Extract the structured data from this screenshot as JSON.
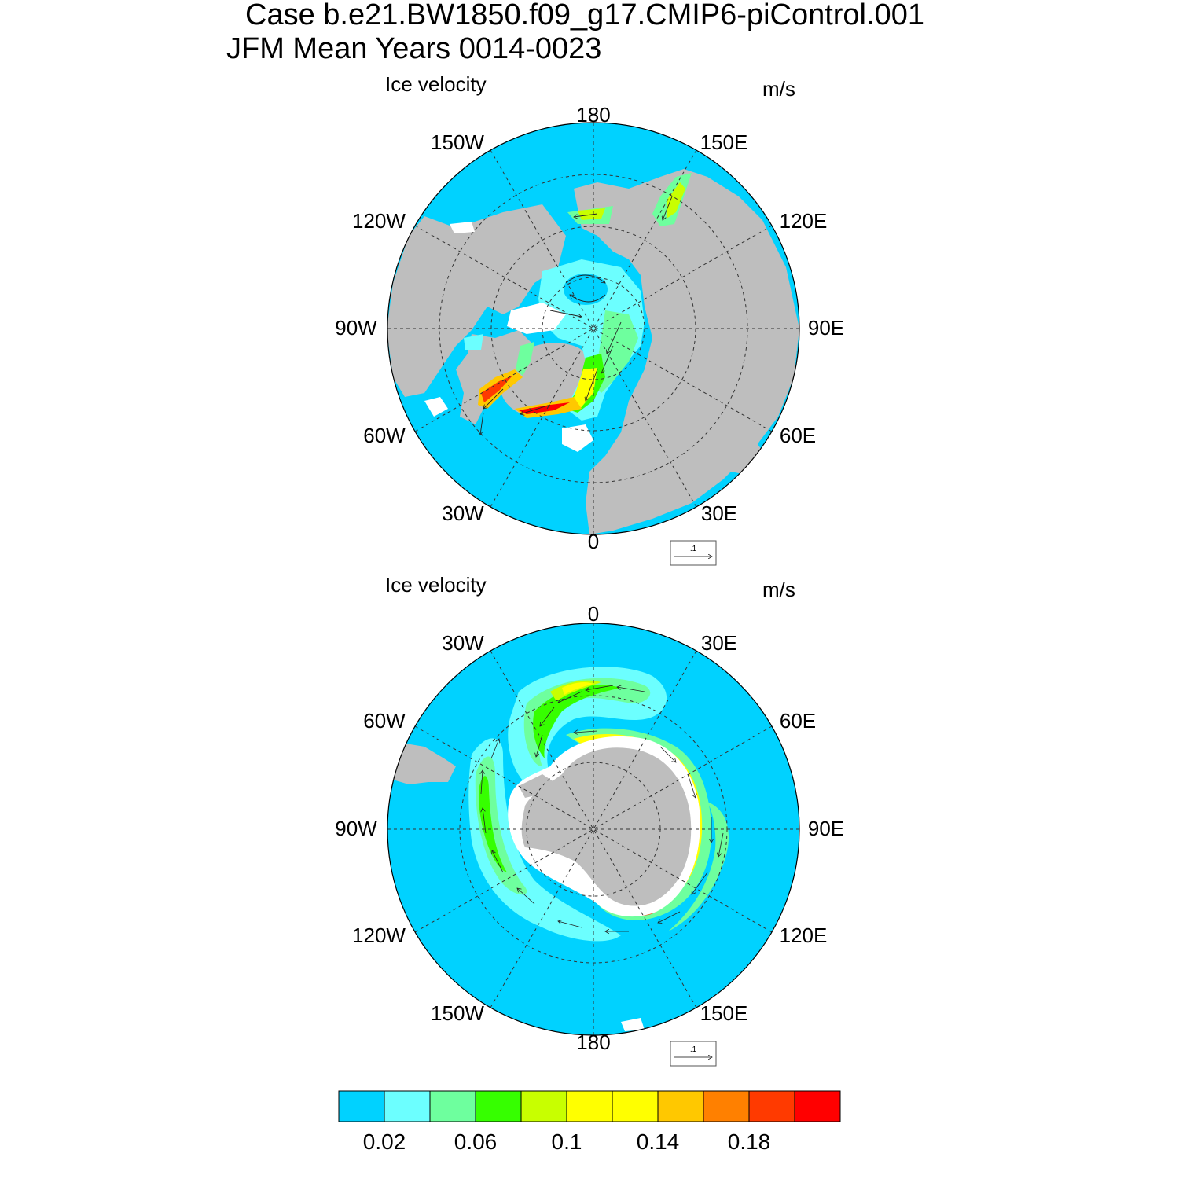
{
  "title": {
    "line1": "Case b.e21.BW1850.f09_g17.CMIP6-piControl.001",
    "line2": "JFM Mean   Years 0014-0023"
  },
  "north_panel": {
    "field_label": "Ice velocity",
    "units": "m/s",
    "ref_vector_label": ".1",
    "lon_labels": [
      "180",
      "150E",
      "120E",
      "90E",
      "60E",
      "30E",
      "0",
      "30W",
      "60W",
      "90W",
      "120W",
      "150W"
    ]
  },
  "south_panel": {
    "field_label": "Ice velocity",
    "units": "m/s",
    "ref_vector_label": ".1",
    "lon_labels": [
      "0",
      "30E",
      "60E",
      "90E",
      "120E",
      "150E",
      "180",
      "150W",
      "120W",
      "90W",
      "60W",
      "30W"
    ]
  },
  "colorbar": {
    "colors": [
      "#00d2ff",
      "#6cffff",
      "#6eff9e",
      "#36ff00",
      "#c8ff00",
      "#ffff00",
      "#ffff00",
      "#ffc800",
      "#ff8000",
      "#ff3a00",
      "#ff0000"
    ],
    "tick_labels": [
      "0.02",
      "0.06",
      "0.1",
      "0.14",
      "0.18"
    ]
  },
  "legend_colors": {
    "ocean": "#00d2ff",
    "land": "#bebebe"
  }
}
